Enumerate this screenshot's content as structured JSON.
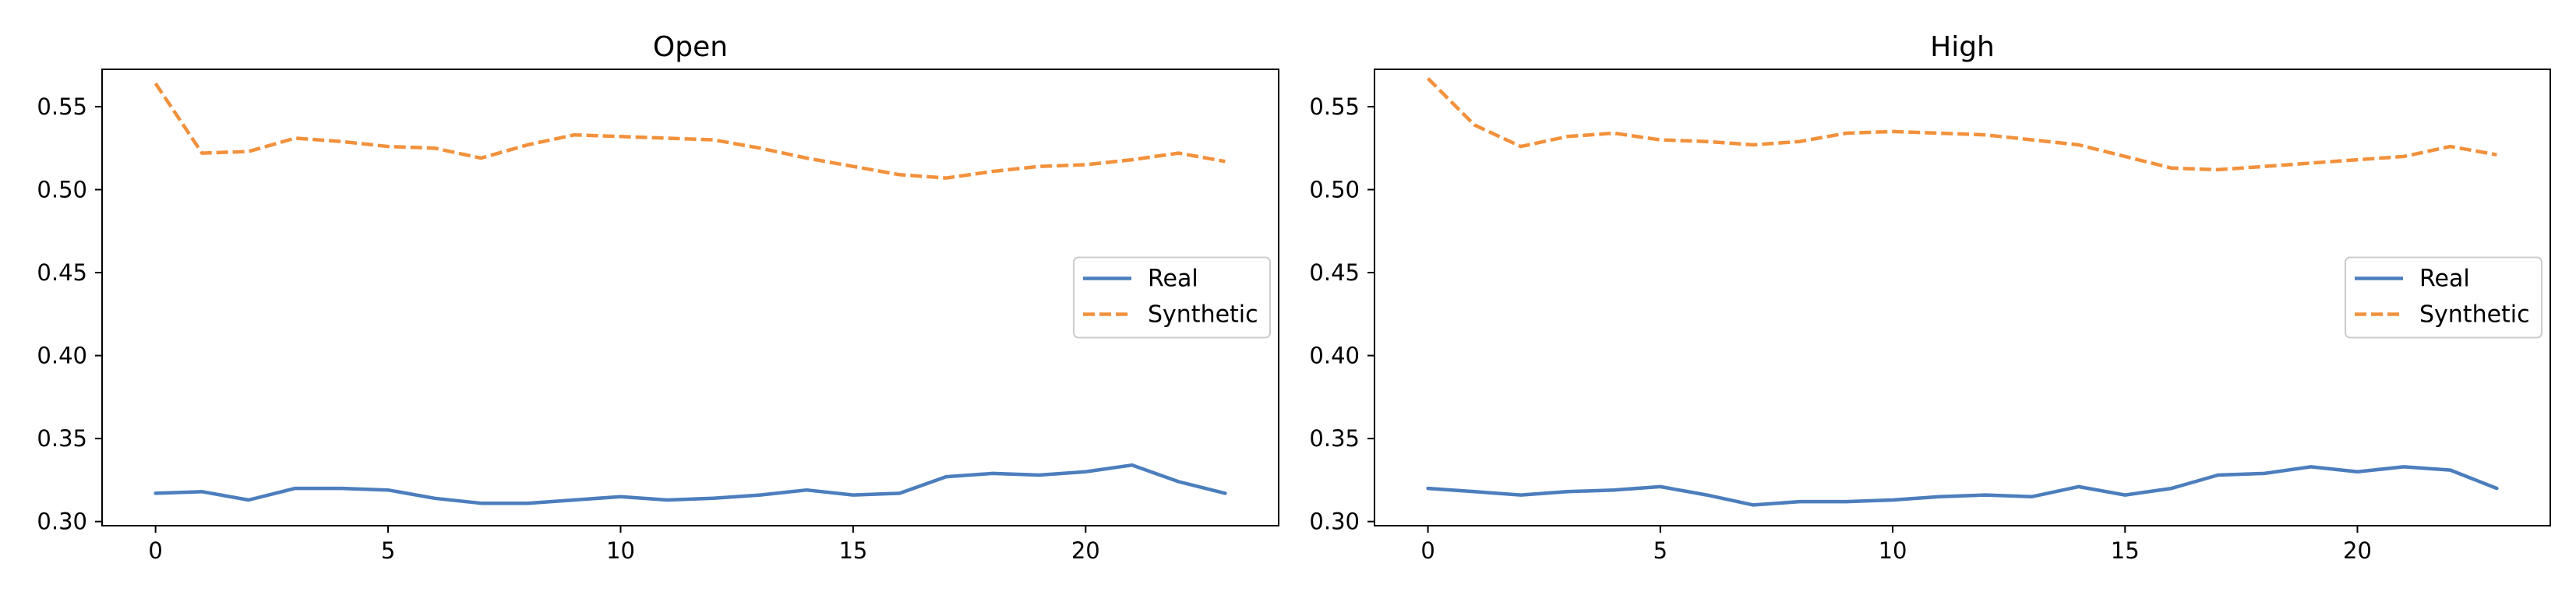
{
  "chart_data": [
    {
      "type": "line",
      "title": "Open",
      "xlabel": "",
      "ylabel": "",
      "xlim": [
        -1.15,
        24.15
      ],
      "ylim": [
        0.2975,
        0.5725
      ],
      "xticks": [
        0,
        5,
        10,
        15,
        20
      ],
      "xtick_labels": [
        "0",
        "5",
        "10",
        "15",
        "20"
      ],
      "yticks": [
        0.3,
        0.35,
        0.4,
        0.45,
        0.5,
        0.55
      ],
      "ytick_labels": [
        "0.30",
        "0.35",
        "0.40",
        "0.45",
        "0.50",
        "0.55"
      ],
      "grid": false,
      "legend_position": "center-right",
      "x": [
        0,
        1,
        2,
        3,
        4,
        5,
        6,
        7,
        8,
        9,
        10,
        11,
        12,
        13,
        14,
        15,
        16,
        17,
        18,
        19,
        20,
        21,
        22,
        23
      ],
      "series": [
        {
          "name": "Real",
          "style": "solid",
          "color": "#4c7ebd",
          "values": [
            0.317,
            0.318,
            0.313,
            0.32,
            0.32,
            0.319,
            0.314,
            0.311,
            0.311,
            0.313,
            0.315,
            0.313,
            0.314,
            0.316,
            0.319,
            0.316,
            0.317,
            0.327,
            0.329,
            0.328,
            0.33,
            0.334,
            0.324,
            0.317
          ]
        },
        {
          "name": "Synthetic",
          "style": "dashed",
          "color": "#f2913c",
          "values": [
            0.564,
            0.522,
            0.523,
            0.531,
            0.529,
            0.526,
            0.525,
            0.519,
            0.527,
            0.533,
            0.532,
            0.531,
            0.53,
            0.525,
            0.519,
            0.514,
            0.509,
            0.507,
            0.511,
            0.514,
            0.515,
            0.518,
            0.522,
            0.517
          ]
        }
      ]
    },
    {
      "type": "line",
      "title": "High",
      "xlabel": "",
      "ylabel": "",
      "xlim": [
        -1.15,
        24.15
      ],
      "ylim": [
        0.2975,
        0.5725
      ],
      "xticks": [
        0,
        5,
        10,
        15,
        20
      ],
      "xtick_labels": [
        "0",
        "5",
        "10",
        "15",
        "20"
      ],
      "yticks": [
        0.3,
        0.35,
        0.4,
        0.45,
        0.5,
        0.55
      ],
      "ytick_labels": [
        "0.30",
        "0.35",
        "0.40",
        "0.45",
        "0.50",
        "0.55"
      ],
      "grid": false,
      "legend_position": "center-right",
      "x": [
        0,
        1,
        2,
        3,
        4,
        5,
        6,
        7,
        8,
        9,
        10,
        11,
        12,
        13,
        14,
        15,
        16,
        17,
        18,
        19,
        20,
        21,
        22,
        23
      ],
      "series": [
        {
          "name": "Real",
          "style": "solid",
          "color": "#4c7ebd",
          "values": [
            0.32,
            0.318,
            0.316,
            0.318,
            0.319,
            0.321,
            0.316,
            0.31,
            0.312,
            0.312,
            0.313,
            0.315,
            0.316,
            0.315,
            0.321,
            0.316,
            0.32,
            0.328,
            0.329,
            0.333,
            0.33,
            0.333,
            0.331,
            0.32
          ]
        },
        {
          "name": "Synthetic",
          "style": "dashed",
          "color": "#f2913c",
          "values": [
            0.567,
            0.539,
            0.526,
            0.532,
            0.534,
            0.53,
            0.529,
            0.527,
            0.529,
            0.534,
            0.535,
            0.534,
            0.533,
            0.53,
            0.527,
            0.52,
            0.513,
            0.512,
            0.514,
            0.516,
            0.518,
            0.52,
            0.526,
            0.521
          ]
        }
      ]
    }
  ]
}
